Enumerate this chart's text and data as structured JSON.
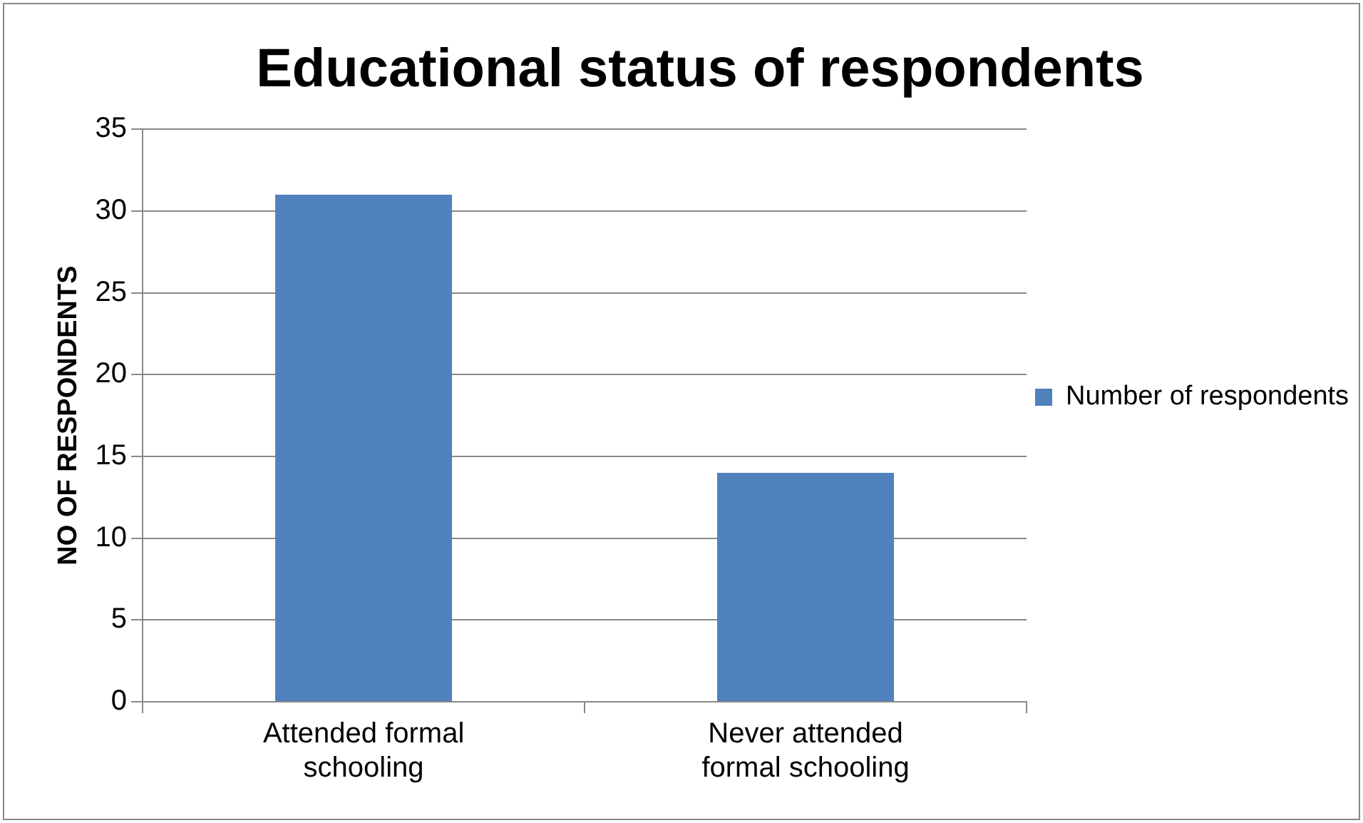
{
  "chart_data": {
    "type": "bar",
    "title": "Educational status of respondents",
    "ylabel": "NO OF RESPONDENTS",
    "categories": [
      "Attended formal schooling",
      "Never attended formal schooling"
    ],
    "series": [
      {
        "name": "Number of respondents",
        "color": "#4f81bd",
        "values": [
          31,
          14
        ]
      }
    ],
    "ylim": [
      0,
      35
    ],
    "yticks": [
      0,
      5,
      10,
      15,
      20,
      25,
      30,
      35
    ],
    "grid": "y",
    "legend": "right"
  }
}
